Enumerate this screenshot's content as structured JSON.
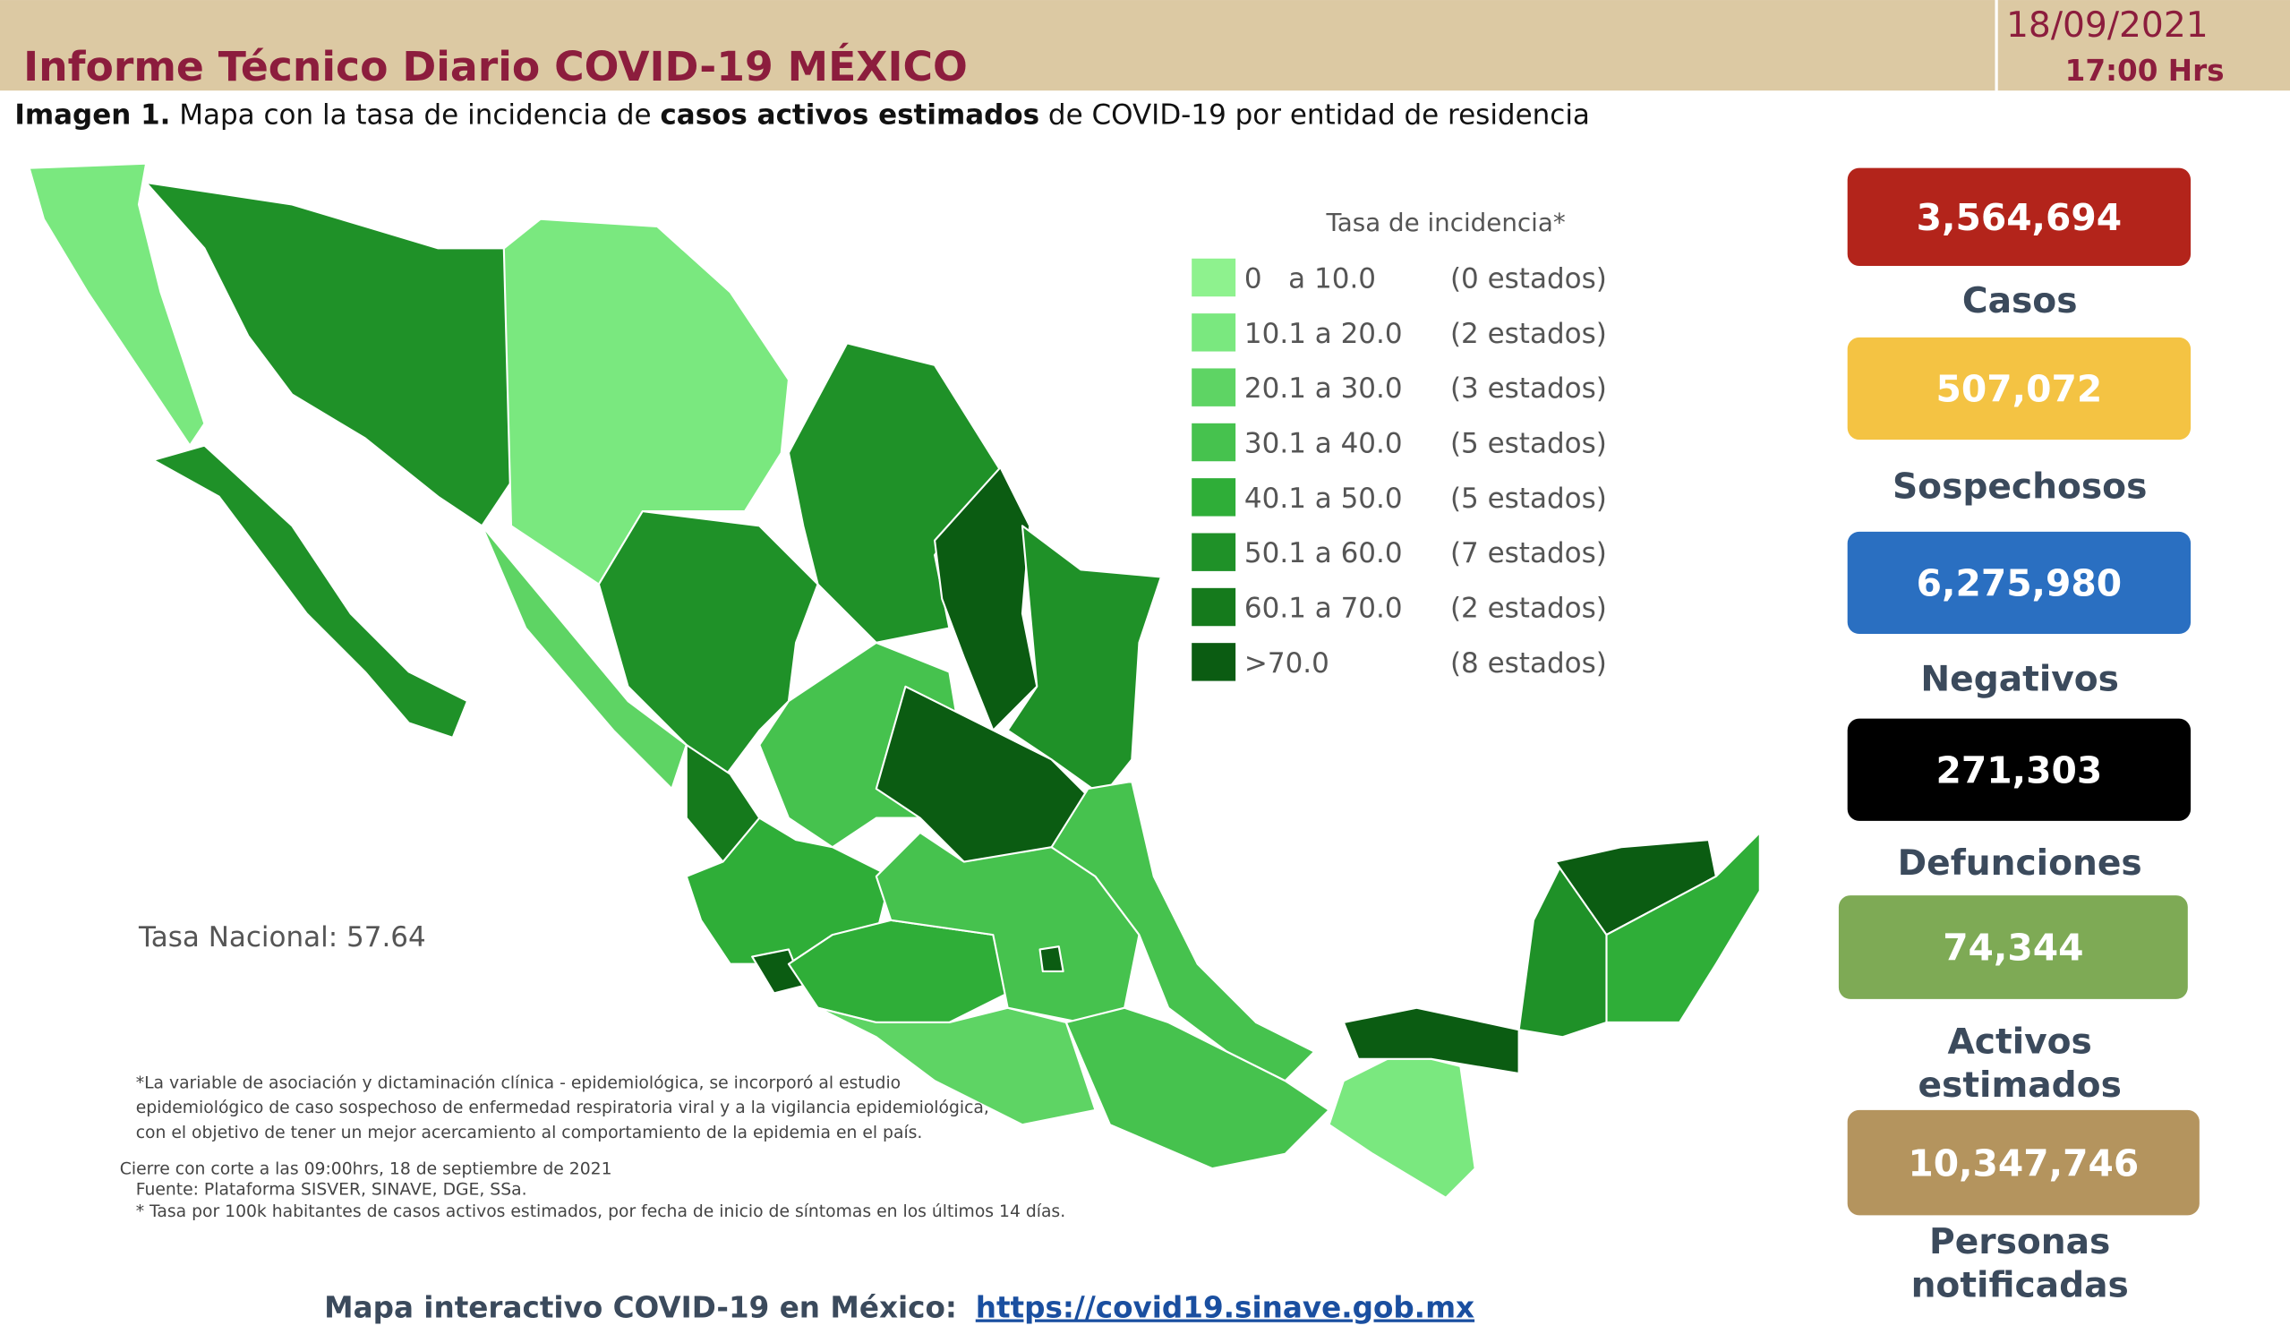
{
  "header": {
    "title": "Informe Técnico Diario COVID-19 MÉXICO",
    "date": "18/09/2021",
    "time": "17:00 Hrs"
  },
  "caption": {
    "lead": "Imagen 1.",
    "text1": " Mapa con la tasa de incidencia de ",
    "bold": "casos activos estimados",
    "text2": " de COVID-19 por entidad de residencia"
  },
  "legend": {
    "title": "Tasa de incidencia*",
    "items": [
      {
        "range": "0   a 10.0",
        "count": "(0 estados)",
        "color": "#8ef28e"
      },
      {
        "range": "10.1 a 20.0",
        "count": "(2 estados)",
        "color": "#7ae87f"
      },
      {
        "range": "20.1 a 30.0",
        "count": "(3 estados)",
        "color": "#5ed464"
      },
      {
        "range": "30.1 a 40.0",
        "count": "(5 estados)",
        "color": "#46c24e"
      },
      {
        "range": "40.1 a 50.0",
        "count": "(5 estados)",
        "color": "#2fae38"
      },
      {
        "range": "50.1 a 60.0",
        "count": "(7 estados)",
        "color": "#1f9128"
      },
      {
        "range": "60.1 a 70.0",
        "count": "(2 estados)",
        "color": "#157a1c"
      },
      {
        "range": ">70.0",
        "count": "(8 estados)",
        "color": "#0b5c12"
      }
    ]
  },
  "national_rate": "Tasa Nacional: 57.64",
  "notes": [
    "*La variable de asociación y dictaminación clínica - epidemiológica, se incorporó al estudio",
    "epidemiológico de caso sospechoso de enfermedad respiratoria viral y a la vigilancia epidemiológica,",
    "con el objetivo de tener un mejor acercamiento al comportamiento de la epidemia en el país.",
    "Cierre con corte a las 09:00hrs, 18 de septiembre de 2021",
    "Fuente: Plataforma SISVER, SINAVE, DGE, SSa.",
    "* Tasa por 100k habitantes de casos activos estimados, por fecha de inicio de síntomas en los últimos 14 días."
  ],
  "stats": [
    {
      "value": "3,564,694",
      "label": [
        "Casos"
      ],
      "color": "#b3241b"
    },
    {
      "value": "507,072",
      "label": [
        "Sospechosos"
      ],
      "color": "#f4c343"
    },
    {
      "value": "6,275,980",
      "label": [
        "Negativos"
      ],
      "color": "#2a6fc1"
    },
    {
      "value": "271,303",
      "label": [
        "Defunciones"
      ],
      "color": "#000000"
    },
    {
      "value": "74,344",
      "label": [
        "Activos",
        "estimados"
      ],
      "color": "#7eaa55"
    },
    {
      "value": "10,347,746",
      "label": [
        "Personas",
        "notificadas"
      ],
      "color": "#b4945e"
    }
  ],
  "footer": {
    "text": "Mapa interactivo COVID-19 en México:",
    "link": "https://covid19.sinave.gob.mx"
  }
}
